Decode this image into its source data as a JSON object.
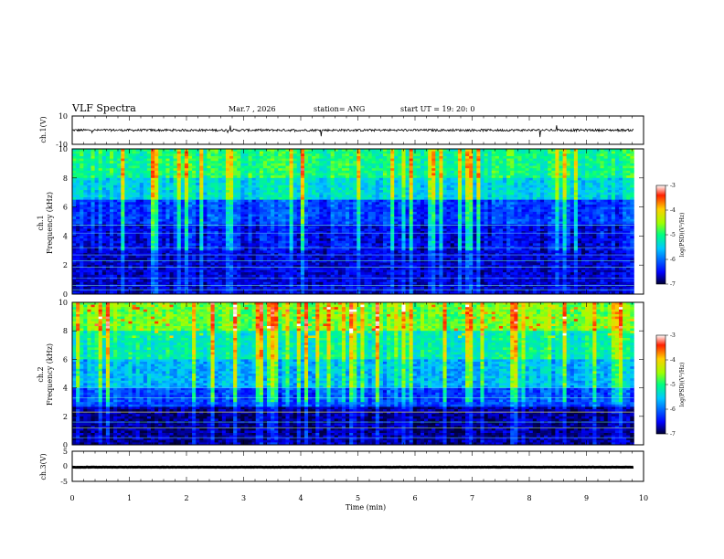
{
  "header": {
    "title": "VLF Spectra",
    "date": "Mar.7 , 2026",
    "station": "station= ANG",
    "start_ut": "start UT =   19: 20: 0"
  },
  "chart_data": {
    "type": "heatmap",
    "title": "VLF Spectra",
    "xlabel": "Time (min)",
    "xlim": [
      0,
      10
    ],
    "x_ticks": [
      0,
      1,
      2,
      3,
      4,
      5,
      6,
      7,
      8,
      9,
      10
    ],
    "data_end_min": 9.83,
    "panels": [
      {
        "name": "ch1-waveform",
        "type": "line",
        "ylabel": "ch.1(V)",
        "ylim": [
          -10,
          10
        ],
        "y_ticks": [
          10,
          -10
        ],
        "baseline": 0
      },
      {
        "name": "ch1-spectrogram",
        "type": "heatmap",
        "ylabel_line1": "ch.1",
        "ylabel_line2": "Frequency (kHz)",
        "ylim": [
          0,
          10
        ],
        "y_ticks": [
          0,
          2,
          4,
          6,
          8,
          10
        ],
        "colorbar": {
          "label": "log(PSD)(V²/Hz)",
          "range": [
            -7,
            -3
          ],
          "ticks": [
            -3,
            -4,
            -5,
            -6,
            -7
          ]
        }
      },
      {
        "name": "ch2-spectrogram",
        "type": "heatmap",
        "ylabel_line1": "ch.2",
        "ylabel_line2": "Frequency (kHz)",
        "ylim": [
          0,
          10
        ],
        "y_ticks": [
          0,
          2,
          4,
          6,
          8,
          10
        ],
        "colorbar": {
          "label": "log(PSD)(V²/Hz)",
          "range": [
            -7,
            -3
          ],
          "ticks": [
            -3,
            -4,
            -5,
            -6,
            -7
          ]
        }
      },
      {
        "name": "ch3-waveform",
        "type": "line",
        "ylabel": "ch.3(V)",
        "ylim": [
          -5,
          5
        ],
        "y_ticks": [
          5,
          0,
          -5
        ],
        "baseline": -0.3
      }
    ]
  }
}
